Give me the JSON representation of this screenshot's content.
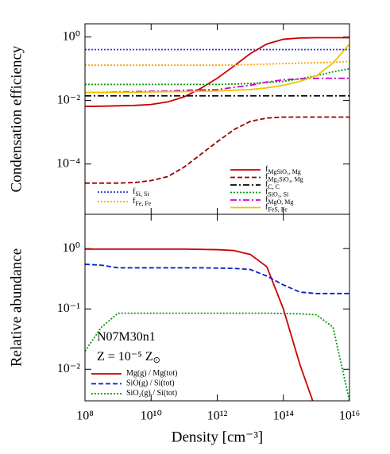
{
  "chart_data": [
    {
      "type": "line",
      "y_label": "Condensation efficiency",
      "log_x": true,
      "log_y": true,
      "x": [
        100000000.0,
        316000000.0,
        1000000000.0,
        3160000000.0,
        10000000000.0,
        31600000000.0,
        100000000000.0,
        316000000000.0,
        1000000000000.0,
        3160000000000.0,
        10000000000000.0,
        31600000000000.0,
        100000000000000.0,
        316000000000000.0,
        1000000000000000.0,
        3160000000000000.0,
        1e+16
      ],
      "xlim": [
        100000000.0,
        1e+16
      ],
      "xticks": [
        100000000.0,
        10000000000.0,
        1000000000000.0,
        100000000000000.0,
        1e+16
      ],
      "ylim": [
        2.6e-06,
        2.6
      ],
      "yticks": [
        {
          "value": 1,
          "label": "10⁰"
        },
        {
          "value": 0.01,
          "label": "10⁻²"
        },
        {
          "value": 0.0001,
          "label": "10⁻⁴"
        }
      ],
      "series": [
        {
          "name": "f",
          "name_sub": "MgSiO₃, Mg",
          "color": "#cc0000",
          "dash": "solid",
          "values": [
            0.0065,
            0.0066,
            0.0068,
            0.007,
            0.0075,
            0.009,
            0.013,
            0.024,
            0.05,
            0.12,
            0.3,
            0.6,
            0.85,
            0.93,
            0.95,
            0.95,
            0.95
          ]
        },
        {
          "name": "f",
          "name_sub": "Mg₂SiO₄, Mg",
          "color": "#990000",
          "dash": "dashed",
          "values": [
            2.5e-05,
            2.5e-05,
            2.5e-05,
            2.6e-05,
            3e-05,
            4e-05,
            8e-05,
            0.0002,
            0.0005,
            0.0012,
            0.0022,
            0.0028,
            0.003,
            0.003,
            0.003,
            0.003,
            0.003
          ]
        },
        {
          "name": "f",
          "name_sub": "C, C",
          "color": "#000000",
          "dash": "dashdot",
          "values": [
            0.014,
            0.014,
            0.014,
            0.014,
            0.014,
            0.014,
            0.014,
            0.014,
            0.014,
            0.014,
            0.014,
            0.014,
            0.014,
            0.014,
            0.014,
            0.014,
            0.014
          ]
        },
        {
          "name": "f",
          "name_sub": "SiO₂, Si",
          "color": "#009900",
          "dash": "dotted",
          "values": [
            0.032,
            0.032,
            0.032,
            0.032,
            0.032,
            0.032,
            0.032,
            0.032,
            0.032,
            0.033,
            0.034,
            0.037,
            0.04,
            0.048,
            0.06,
            0.08,
            0.1
          ]
        },
        {
          "name": "f",
          "name_sub": "MgO, Mg",
          "color": "#cc00cc",
          "dash": "dashdot",
          "values": [
            0.018,
            0.018,
            0.0185,
            0.019,
            0.0195,
            0.02,
            0.021,
            0.0215,
            0.022,
            0.026,
            0.03,
            0.038,
            0.045,
            0.048,
            0.05,
            0.05,
            0.05
          ]
        },
        {
          "name": "f",
          "name_sub": "FeS, Fe",
          "color": "#f2c200",
          "dash": "solid",
          "values": [
            0.018,
            0.018,
            0.018,
            0.018,
            0.0185,
            0.019,
            0.019,
            0.0195,
            0.02,
            0.021,
            0.022,
            0.025,
            0.03,
            0.04,
            0.06,
            0.15,
            0.6
          ]
        },
        {
          "name": "f",
          "name_sub": "Si, Si",
          "color": "#3333cc",
          "dash": "dotted",
          "values": [
            0.4,
            0.4,
            0.4,
            0.4,
            0.4,
            0.4,
            0.4,
            0.4,
            0.4,
            0.4,
            0.4,
            0.4,
            0.4,
            0.4,
            0.4,
            0.4,
            0.4
          ]
        },
        {
          "name": "f",
          "name_sub": "Fe, Fe",
          "color": "#ffa500",
          "dash": "dotted",
          "values": [
            0.13,
            0.13,
            0.13,
            0.13,
            0.13,
            0.13,
            0.13,
            0.13,
            0.13,
            0.13,
            0.135,
            0.14,
            0.145,
            0.15,
            0.155,
            0.16,
            0.17
          ]
        }
      ]
    },
    {
      "type": "line",
      "y_label": "Relative abundance",
      "x_label": "Density [cm⁻³]",
      "log_x": true,
      "log_y": true,
      "annotations": [
        {
          "text": "N07M30n1"
        },
        {
          "text": "Z = 10⁻⁵ Z",
          "sub": "⊙"
        }
      ],
      "x": [
        100000000.0,
        316000000.0,
        1000000000.0,
        3160000000.0,
        10000000000.0,
        31600000000.0,
        100000000000.0,
        316000000000.0,
        1000000000000.0,
        3160000000000.0,
        10000000000000.0,
        31600000000000.0,
        100000000000000.0,
        316000000000000.0,
        1000000000000000.0,
        3160000000000000.0,
        1e+16
      ],
      "xlim": [
        100000000.0,
        1e+16
      ],
      "xticks": [
        {
          "value": 100000000.0,
          "label": "10⁸"
        },
        {
          "value": 10000000000.0,
          "label": "10¹⁰"
        },
        {
          "value": 1000000000000.0,
          "label": "10¹²"
        },
        {
          "value": 100000000000000.0,
          "label": "10¹⁴"
        },
        {
          "value": 1e+16,
          "label": "10¹⁶"
        }
      ],
      "ylim": [
        0.003,
        3.7
      ],
      "yticks": [
        {
          "value": 1,
          "label": "10⁰"
        },
        {
          "value": 0.1,
          "label": "10⁻¹"
        },
        {
          "value": 0.01,
          "label": "10⁻²"
        }
      ],
      "series": [
        {
          "name": "Mg(g) / Mg(tot)",
          "color": "#cc0000",
          "dash": "solid",
          "values": [
            0.98,
            0.98,
            0.98,
            0.98,
            0.98,
            0.98,
            0.98,
            0.97,
            0.96,
            0.93,
            0.8,
            0.5,
            0.1,
            0.012,
            0.002,
            null,
            null
          ]
        },
        {
          "name": "SiO(g) / Si(tot)",
          "color": "#0022cc",
          "dash": "dashed",
          "values": [
            0.55,
            0.53,
            0.48,
            0.48,
            0.48,
            0.48,
            0.48,
            0.48,
            0.475,
            0.47,
            0.45,
            0.35,
            0.25,
            0.19,
            0.18,
            0.18,
            0.18
          ]
        },
        {
          "name": "SiO₂(g) / Si(tot)",
          "color": "#009900",
          "dash": "dotted",
          "values": [
            0.02,
            0.05,
            0.085,
            0.085,
            0.085,
            0.085,
            0.085,
            0.085,
            0.085,
            0.085,
            0.085,
            0.085,
            0.084,
            0.083,
            0.08,
            0.05,
            0.003
          ]
        }
      ]
    }
  ]
}
